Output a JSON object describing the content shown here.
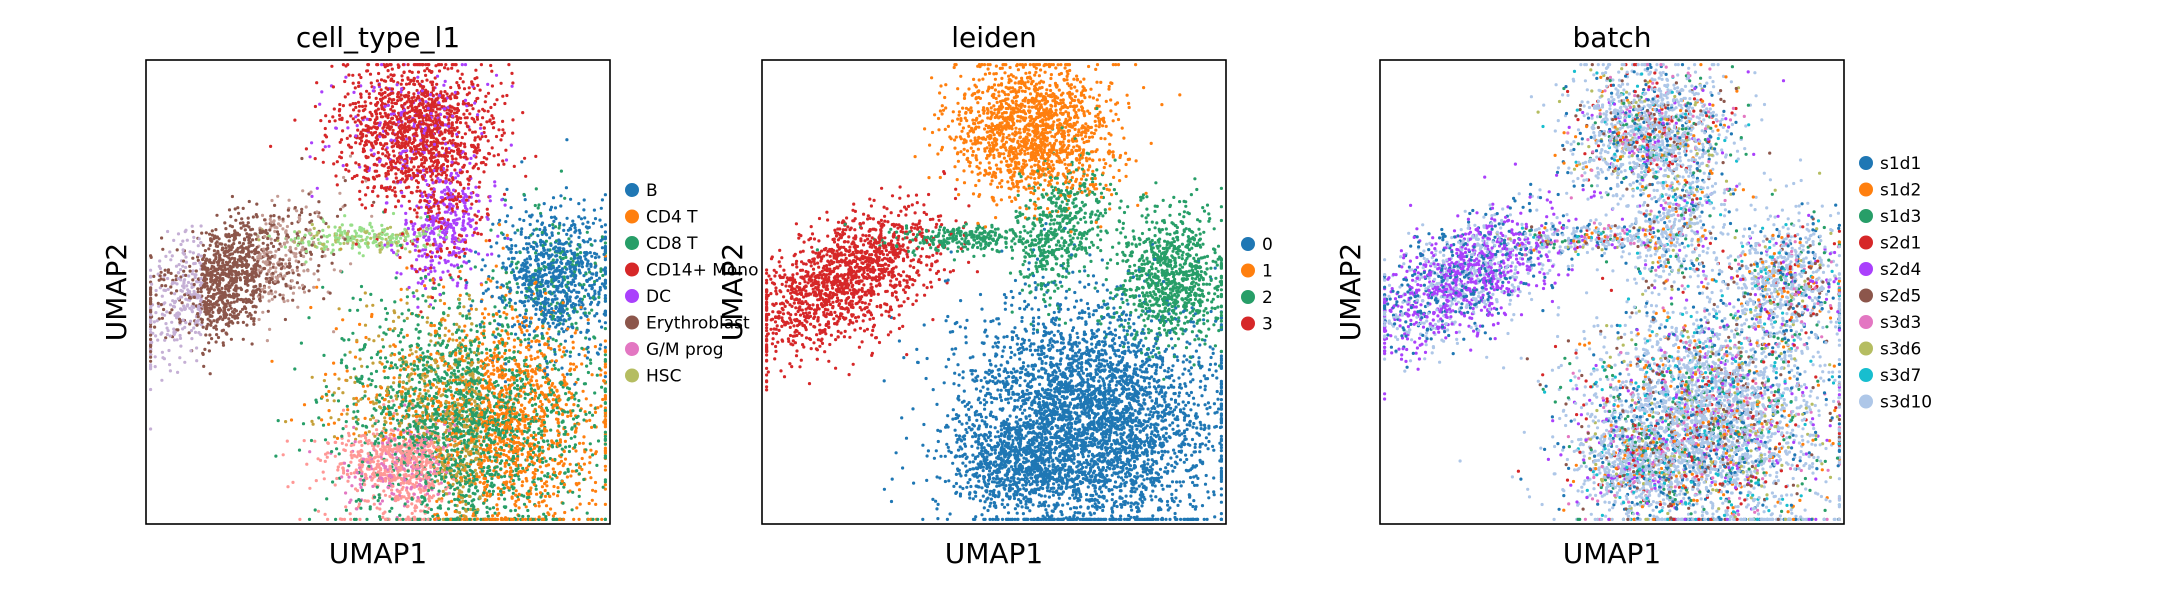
{
  "chart_data": [
    {
      "type": "scatter",
      "title": "cell_type_l1",
      "xlabel": "UMAP1",
      "ylabel": "UMAP2",
      "grid": false,
      "ticks": false,
      "legend_position": "right",
      "series": [
        {
          "name": "B",
          "color": "#1f77b4"
        },
        {
          "name": "CD4 T",
          "color": "#ff7f0e"
        },
        {
          "name": "CD8 T",
          "color": "#279e68"
        },
        {
          "name": "CD14+ Mono",
          "color": "#d62728"
        },
        {
          "name": "DC",
          "color": "#aa40fc"
        },
        {
          "name": "Erythroblast",
          "color": "#8c564b"
        },
        {
          "name": "G/M prog",
          "color": "#e377c2"
        },
        {
          "name": "HSC",
          "color": "#b5bd61"
        }
      ]
    },
    {
      "type": "scatter",
      "title": "leiden",
      "xlabel": "UMAP1",
      "ylabel": "UMAP2",
      "grid": false,
      "ticks": false,
      "legend_position": "right",
      "series": [
        {
          "name": "0",
          "color": "#1f77b4"
        },
        {
          "name": "1",
          "color": "#ff7f0e"
        },
        {
          "name": "2",
          "color": "#279e68"
        },
        {
          "name": "3",
          "color": "#d62728"
        }
      ]
    },
    {
      "type": "scatter",
      "title": "batch",
      "xlabel": "UMAP1",
      "ylabel": "UMAP2",
      "grid": false,
      "ticks": false,
      "legend_position": "right",
      "series": [
        {
          "name": "s1d1",
          "color": "#1f77b4"
        },
        {
          "name": "s1d2",
          "color": "#ff7f0e"
        },
        {
          "name": "s1d3",
          "color": "#279e68"
        },
        {
          "name": "s2d1",
          "color": "#d62728"
        },
        {
          "name": "s2d4",
          "color": "#aa40fc"
        },
        {
          "name": "s2d5",
          "color": "#8c564b"
        },
        {
          "name": "s3d3",
          "color": "#e377c2"
        },
        {
          "name": "s3d6",
          "color": "#b5bd61"
        },
        {
          "name": "s3d7",
          "color": "#17becf"
        },
        {
          "name": "s3d10",
          "color": "#aec7e8"
        }
      ]
    }
  ]
}
